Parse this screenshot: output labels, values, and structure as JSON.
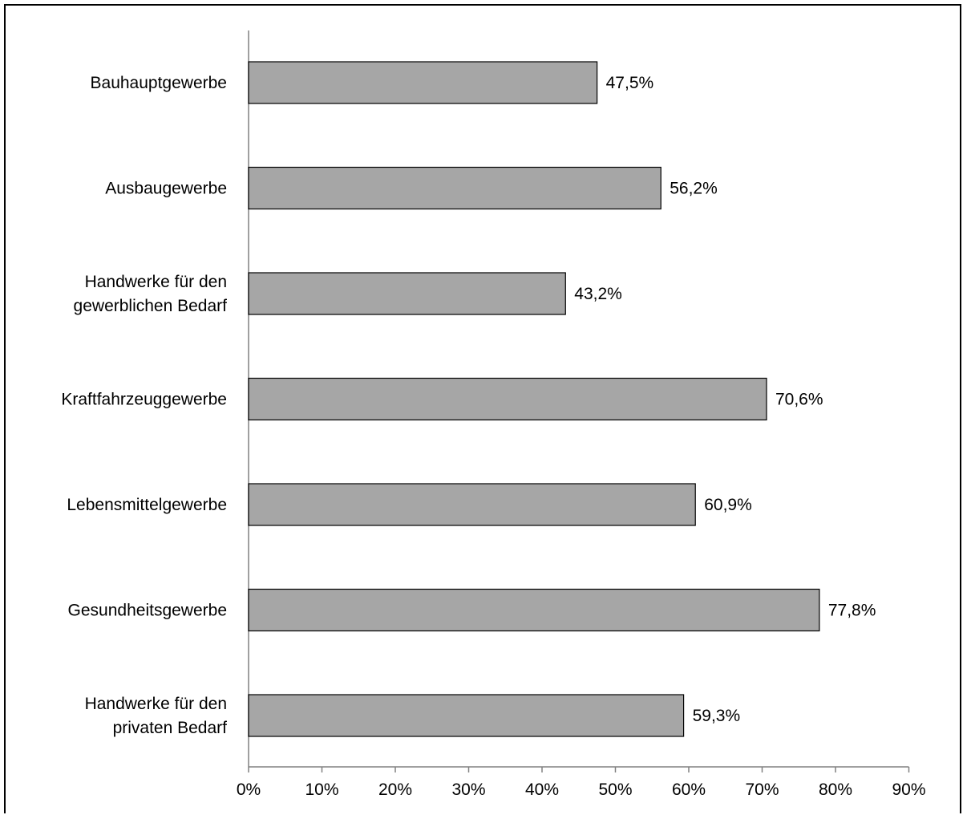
{
  "chart_data": {
    "type": "bar",
    "orientation": "horizontal",
    "title": "",
    "xlabel": "",
    "ylabel": "",
    "categories": [
      [
        "Bauhauptgewerbe"
      ],
      [
        "Ausbaugewerbe"
      ],
      [
        "Handwerke für den",
        "gewerblichen Bedarf"
      ],
      [
        "Kraftfahrzeuggewerbe"
      ],
      [
        "Lebensmittelgewerbe"
      ],
      [
        "Gesundheitsgewerbe"
      ],
      [
        "Handwerke für den",
        "privaten Bedarf"
      ]
    ],
    "values": [
      47.5,
      56.2,
      43.2,
      70.6,
      60.9,
      77.8,
      59.3
    ],
    "data_labels": [
      "47,5%",
      "56,2%",
      "43,2%",
      "70,6%",
      "60,9%",
      "77,8%",
      "59,3%"
    ],
    "xlim": [
      0,
      90
    ],
    "xticks": [
      0,
      10,
      20,
      30,
      40,
      50,
      60,
      70,
      80,
      90
    ],
    "xtick_labels": [
      "0%",
      "10%",
      "20%",
      "30%",
      "40%",
      "50%",
      "60%",
      "70%",
      "80%",
      "90%"
    ],
    "grid": false,
    "legend": "none",
    "bar_color": "#a6a6a6",
    "bar_edge_color": "#000000",
    "axis_color": "#808080"
  }
}
